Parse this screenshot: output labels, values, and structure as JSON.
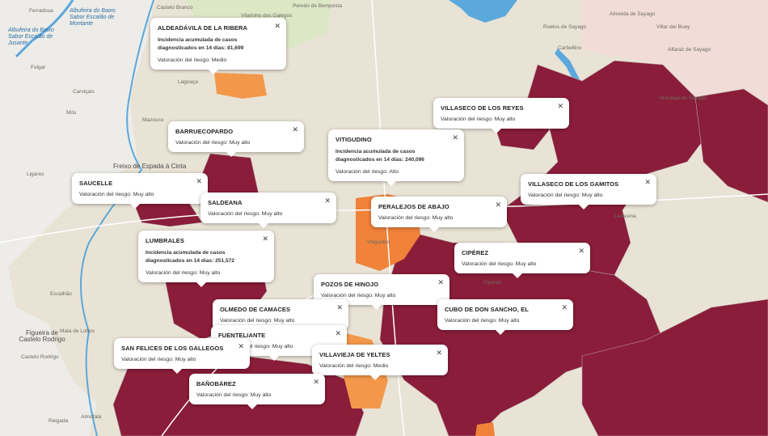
{
  "place_labels": [
    "Ferradosa",
    "Castelo Branco",
    "Vilarinho dos Galegos",
    "Peredo de Bemposta",
    "Albufeira do Baixo Sabor Escalão de Montante",
    "Albufeira do Baixo Sabor Escalão de Jusante",
    "Felgar",
    "Carviçais",
    "Mós",
    "Lagoaça",
    "Mazouco",
    "Freixo de Espada à Cinta",
    "Ligares",
    "Escalhão",
    "Figueira de Castelo Rodrigo",
    "Castelo Rodrigo",
    "Almofala",
    "Reigada",
    "Carbellino",
    "Roelos de Sayago",
    "Almeida de Sayago",
    "Villar del Buey",
    "Alfaraz de Sayago",
    "Moraleja de Sayago",
    "Mata de Lobos",
    "Vitigudino",
    "Cipérez",
    "Ledesma"
  ],
  "popups": [
    {
      "title": "ALDEADÁVILA DE LA RIBERA",
      "incidence": "Incidencia acumulada de casos diagnosticados en 14 días: 81,699",
      "risk": "Valoración del riesgo: Medio"
    },
    {
      "title": "BARRUECOPARDO",
      "risk": "Valoración del riesgo: Muy alto"
    },
    {
      "title": "VILLASECO DE LOS REYES",
      "risk": "Valoración del riesgo: Muy alto"
    },
    {
      "title": "VITIGUDINO",
      "incidence": "Incidencia acumulada de casos diagnosticados en 14 días: 240,096",
      "risk": "Valoración del riesgo: Alto"
    },
    {
      "title": "SAUCELLE",
      "risk": "Valoración del riesgo: Muy alto"
    },
    {
      "title": "VILLASECO DE LOS GAMITOS",
      "risk": "Valoración del riesgo: Muy alto"
    },
    {
      "title": "SALDEANA",
      "risk": "Valoración del riesgo: Muy alto"
    },
    {
      "title": "PERALEJOS DE ABAJO",
      "risk": "Valoración del riesgo: Muy alto"
    },
    {
      "title": "LUMBRALES",
      "incidence": "Incidencia acumulada de casos diagnosticados en 14 días: 251,572",
      "risk": "Valoración del riesgo: Muy alto"
    },
    {
      "title": "CIPÉREZ",
      "risk": "Valoración del riesgo: Muy alto"
    },
    {
      "title": "POZOS DE HINOJO",
      "risk": "Valoración del riesgo: Muy alto"
    },
    {
      "title": "OLMEDO DE CAMACES",
      "risk": "Valoración del riesgo: Muy alto"
    },
    {
      "title": "CUBO DE DON SANCHO, EL",
      "risk": "Valoración del riesgo: Muy alto"
    },
    {
      "title": "FUENTELIANTE",
      "risk": "Valoración del riesgo: Muy alto"
    },
    {
      "title": "SAN FELICES DE LOS GALLEGOS",
      "risk": "Valoración del riesgo: Muy alto"
    },
    {
      "title": "VILLAVIEJA DE YELTES",
      "risk": "Valoración del riesgo: Medio"
    },
    {
      "title": "BAÑOBÁREZ",
      "risk": "Valoración del riesgo: Muy alto"
    }
  ]
}
